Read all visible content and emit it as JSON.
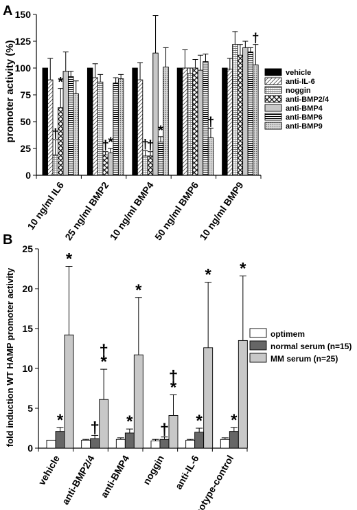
{
  "chart_data": [
    {
      "panel_label": "A",
      "type": "bar",
      "ylabel": "promoter activity (%)",
      "ylim": [
        0,
        150
      ],
      "yticks": [
        0,
        25,
        50,
        75,
        100,
        125,
        150
      ],
      "categories": [
        "10 ng/ml IL6",
        "25 ng/ml BMP2",
        "10 ng/ml BMP4",
        "50 ng/ml BMP6",
        "10 ng/ml BMP9"
      ],
      "legend_placement": "right",
      "series": [
        {
          "name": "vehicle",
          "pattern": "solid-black",
          "values": [
            100,
            100,
            100,
            100,
            100
          ],
          "errors": [
            0,
            0,
            0,
            0,
            0
          ]
        },
        {
          "name": "anti-IL-6",
          "pattern": "diag-fwd",
          "values": [
            89,
            91,
            89,
            100,
            99
          ],
          "errors": [
            20,
            13,
            16,
            17,
            10
          ]
        },
        {
          "name": "noggin",
          "pattern": "dense-hatch",
          "values": [
            19,
            87,
            18,
            95,
            122
          ],
          "errors": [
            14,
            7,
            5,
            5,
            12
          ]
        },
        {
          "name": "anti-BMP2/4",
          "pattern": "crosshatch",
          "values": [
            63,
            19,
            18,
            100,
            112
          ],
          "errors": [
            18,
            3,
            4,
            8,
            10
          ]
        },
        {
          "name": "anti-BMP4",
          "pattern": "light-gray",
          "values": [
            97,
            21,
            114,
            98,
            119
          ],
          "errors": [
            18,
            4,
            35,
            14,
            6
          ]
        },
        {
          "name": "anti-BMP6",
          "pattern": "horiz-lines",
          "values": [
            92,
            86,
            31,
            106,
            115
          ],
          "errors": [
            5,
            5,
            5,
            7,
            4
          ]
        },
        {
          "name": "anti-BMP9",
          "pattern": "dotted-gray",
          "values": [
            76,
            90,
            101,
            35,
            103
          ],
          "errors": [
            12,
            4,
            18,
            9,
            19
          ]
        }
      ],
      "annotations": [
        {
          "text": "*",
          "category": 0,
          "series": 3
        },
        {
          "text": "†",
          "category": 0,
          "series": 2
        },
        {
          "text": "†",
          "category": 1,
          "series": 3
        },
        {
          "text": "*",
          "category": 1,
          "series": 4
        },
        {
          "text": "†",
          "category": 2,
          "series": 2
        },
        {
          "text": "†",
          "category": 2,
          "series": 3
        },
        {
          "text": "*",
          "category": 2,
          "series": 5
        },
        {
          "text": "†",
          "category": 3,
          "series": 6
        },
        {
          "text": "†",
          "category": 4,
          "series": 6
        }
      ]
    },
    {
      "panel_label": "B",
      "type": "bar",
      "ylabel": "fold induction WT HAMP promoter activity",
      "ylim": [
        0,
        25
      ],
      "yticks": [
        0,
        5,
        10,
        15,
        20,
        25
      ],
      "categories": [
        "vehicle",
        "anti-BMP2/4",
        "anti-BMP4",
        "noggin",
        "anti-IL-6",
        "isotype-control"
      ],
      "legend_placement": "right",
      "series": [
        {
          "name": "optimem",
          "color": "#ffffff",
          "values": [
            1.0,
            1.0,
            1.1,
            0.9,
            1.0,
            1.1
          ],
          "errors": [
            0,
            0.1,
            0.2,
            0.2,
            0.1,
            0.2
          ]
        },
        {
          "name": "normal serum (n=15)",
          "color": "#666666",
          "values": [
            2.1,
            1.2,
            1.9,
            1.1,
            2.0,
            2.1
          ],
          "errors": [
            0.5,
            0.4,
            0.5,
            0.3,
            0.5,
            0.5
          ]
        },
        {
          "name": "MM serum (n=25)",
          "color": "#c8c8c8",
          "values": [
            14.2,
            6.1,
            11.7,
            4.1,
            12.6,
            13.5
          ],
          "errors": [
            8.6,
            3.8,
            7.2,
            2.6,
            8.2,
            8.1
          ]
        }
      ],
      "annotations": [
        {
          "text": "*",
          "category": 0,
          "series": 1
        },
        {
          "text": "*",
          "category": 0,
          "series": 2
        },
        {
          "text": "†",
          "category": 1,
          "series": 1
        },
        {
          "text": "*",
          "category": 1,
          "series": 2
        },
        {
          "text": "†",
          "category": 1,
          "series": 2
        },
        {
          "text": "*",
          "category": 2,
          "series": 1
        },
        {
          "text": "*",
          "category": 2,
          "series": 2
        },
        {
          "text": "†",
          "category": 3,
          "series": 1
        },
        {
          "text": "*",
          "category": 3,
          "series": 2
        },
        {
          "text": "†",
          "category": 3,
          "series": 2
        },
        {
          "text": "*",
          "category": 4,
          "series": 1
        },
        {
          "text": "*",
          "category": 4,
          "series": 2
        },
        {
          "text": "*",
          "category": 5,
          "series": 1
        },
        {
          "text": "*",
          "category": 5,
          "series": 2
        }
      ]
    }
  ]
}
